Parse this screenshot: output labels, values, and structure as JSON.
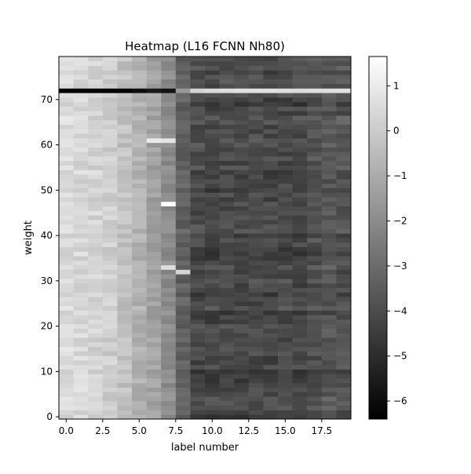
{
  "chart_data": {
    "type": "heatmap",
    "title": "Heatmap (L16 FCNN Nh80)",
    "xlabel": "label number",
    "ylabel": "weight",
    "n_cols": 20,
    "n_rows": 80,
    "x_range": [
      -0.5,
      19.5
    ],
    "y_range": [
      -0.5,
      79.5
    ],
    "x_ticks": [
      0,
      2.5,
      5,
      7.5,
      10,
      12.5,
      15,
      17.5
    ],
    "x_tick_labels": [
      "0.0",
      "2.5",
      "5.0",
      "7.5",
      "10.0",
      "12.5",
      "15.0",
      "17.5"
    ],
    "y_ticks": [
      0,
      10,
      20,
      30,
      40,
      50,
      60,
      70
    ],
    "y_tick_labels": [
      "0",
      "10",
      "20",
      "30",
      "40",
      "50",
      "60",
      "70"
    ],
    "colormap": "gray",
    "color_range": [
      -6.4,
      1.65
    ],
    "colorbar_ticks": [
      1,
      0,
      -1,
      -2,
      -3,
      -4,
      -5,
      -6
    ],
    "colorbar_tick_labels": [
      "1",
      "0",
      "−1",
      "−2",
      "−3",
      "−4",
      "−5",
      "−6"
    ],
    "column_profile": [
      0.5,
      0.4,
      0.3,
      0.1,
      -0.3,
      -0.8,
      -1.3,
      -2.0,
      -3.3,
      -4.1,
      -4.2,
      -4.1,
      -4.2,
      -4.1,
      -4.2,
      -4.1,
      -4.2,
      -3.9,
      -3.7,
      -3.8
    ],
    "anomaly_rows": [
      {
        "row": 72,
        "values": [
          -6.4,
          -6.4,
          -6.4,
          -6.4,
          -6.3,
          -6.0,
          -5.6,
          -5.8,
          -1.6,
          0.3,
          0.5,
          0.6,
          0.7,
          0.7,
          0.7,
          0.6,
          0.5,
          0.6,
          0.6,
          0.7
        ]
      }
    ],
    "bright_spots": [
      {
        "row": 47,
        "col": 7,
        "value": 1.6
      },
      {
        "row": 61,
        "col": 6,
        "value": 1.0
      },
      {
        "row": 61,
        "col": 7,
        "value": 0.8
      },
      {
        "row": 33,
        "col": 7,
        "value": 0.6
      },
      {
        "row": 32,
        "col": 8,
        "value": 0.3
      }
    ]
  }
}
